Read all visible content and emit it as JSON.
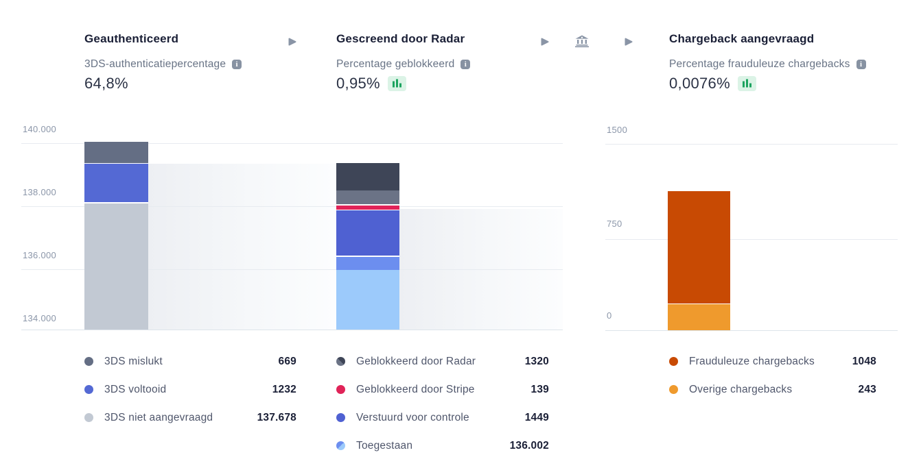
{
  "steps": [
    {
      "title": "Geauthenticeerd",
      "metric_label": "3DS-authenticatiepercentage",
      "metric_value": "64,8%",
      "show_trend_badge": false
    },
    {
      "title": "Gescreend door Radar",
      "metric_label": "Percentage geblokkeerd",
      "metric_value": "0,95%",
      "show_trend_badge": true
    },
    {
      "title": "Chargeback aangevraagd",
      "metric_label": "Percentage frauduleuze chargebacks",
      "metric_value": "0,0076%",
      "show_trend_badge": true
    }
  ],
  "icons": {
    "arrow": "arrow-right-icon",
    "bank": "bank-icon",
    "info": "info-icon",
    "trend": "mini-bar-chart-icon"
  },
  "ui_colors": {
    "trend_badge_bg": "#dbf3e6",
    "trend_badge_bars": "#1ba35f",
    "flow_icon": "#8a95a6",
    "info_icon_bg": "#8792a2",
    "gridline": "#e7ebf0",
    "axis_label": "#8b96a9",
    "funnel_band_start": "#edeff3",
    "funnel_band_end": "#fcfdfe"
  },
  "chart_data": [
    {
      "type": "bar",
      "variant": "stacked-funnel",
      "title": "Geauthenticeerd",
      "yticks": [
        "140.000",
        "138.000",
        "136.000",
        "134.000"
      ],
      "ylim": [
        133580,
        140000
      ],
      "grid": true,
      "legend_position": "bottom",
      "total": 139579,
      "segments": [
        {
          "label": "3DS mislukt",
          "value": 669,
          "display": "669",
          "colors": [
            "#646e84"
          ]
        },
        {
          "label": "3DS voltooid",
          "value": 1232,
          "display": "1232",
          "colors": [
            "#5469d4"
          ]
        },
        {
          "label": "3DS niet aangevraagd",
          "value": 137678,
          "display": "137.678",
          "colors": [
            "#c2c9d3"
          ]
        }
      ]
    },
    {
      "type": "bar",
      "variant": "stacked-funnel",
      "title": "Gescreend door Radar",
      "ylim": [
        133580,
        140000
      ],
      "grid": true,
      "legend_position": "bottom",
      "total": 138910,
      "segments": [
        {
          "label": "Geblokkeerd door Radar",
          "value": 1320,
          "display": "1320",
          "colors": [
            "#3e4557",
            "#6b7386"
          ],
          "split": [
            0.66,
            0.34
          ],
          "dot_deg": 225
        },
        {
          "label": "Geblokkeerd door Stripe",
          "value": 139,
          "display": "139",
          "colors": [
            "#e02358"
          ]
        },
        {
          "label": "Verstuurd voor controle",
          "value": 1449,
          "display": "1449",
          "colors": [
            "#4f61d2"
          ]
        },
        {
          "label": "Toegestaan",
          "value": 136002,
          "display": "136.002",
          "colors": [
            "#6c8eef",
            "#9ccafb"
          ],
          "split": [
            0.18,
            0.82
          ],
          "dot_deg": 135
        }
      ]
    },
    {
      "type": "bar",
      "variant": "stacked",
      "title": "Chargeback aangevraagd",
      "yticks": [
        "1500",
        "750",
        "0"
      ],
      "ylim": [
        0,
        1500
      ],
      "grid": true,
      "legend_position": "bottom",
      "total": 1291,
      "segments": [
        {
          "label": "Frauduleuze chargebacks",
          "value": 1048,
          "display": "1048",
          "colors": [
            "#c84a03"
          ]
        },
        {
          "label": "Overige chargebacks",
          "value": 243,
          "display": "243",
          "colors": [
            "#ef9a2d"
          ]
        }
      ]
    }
  ]
}
